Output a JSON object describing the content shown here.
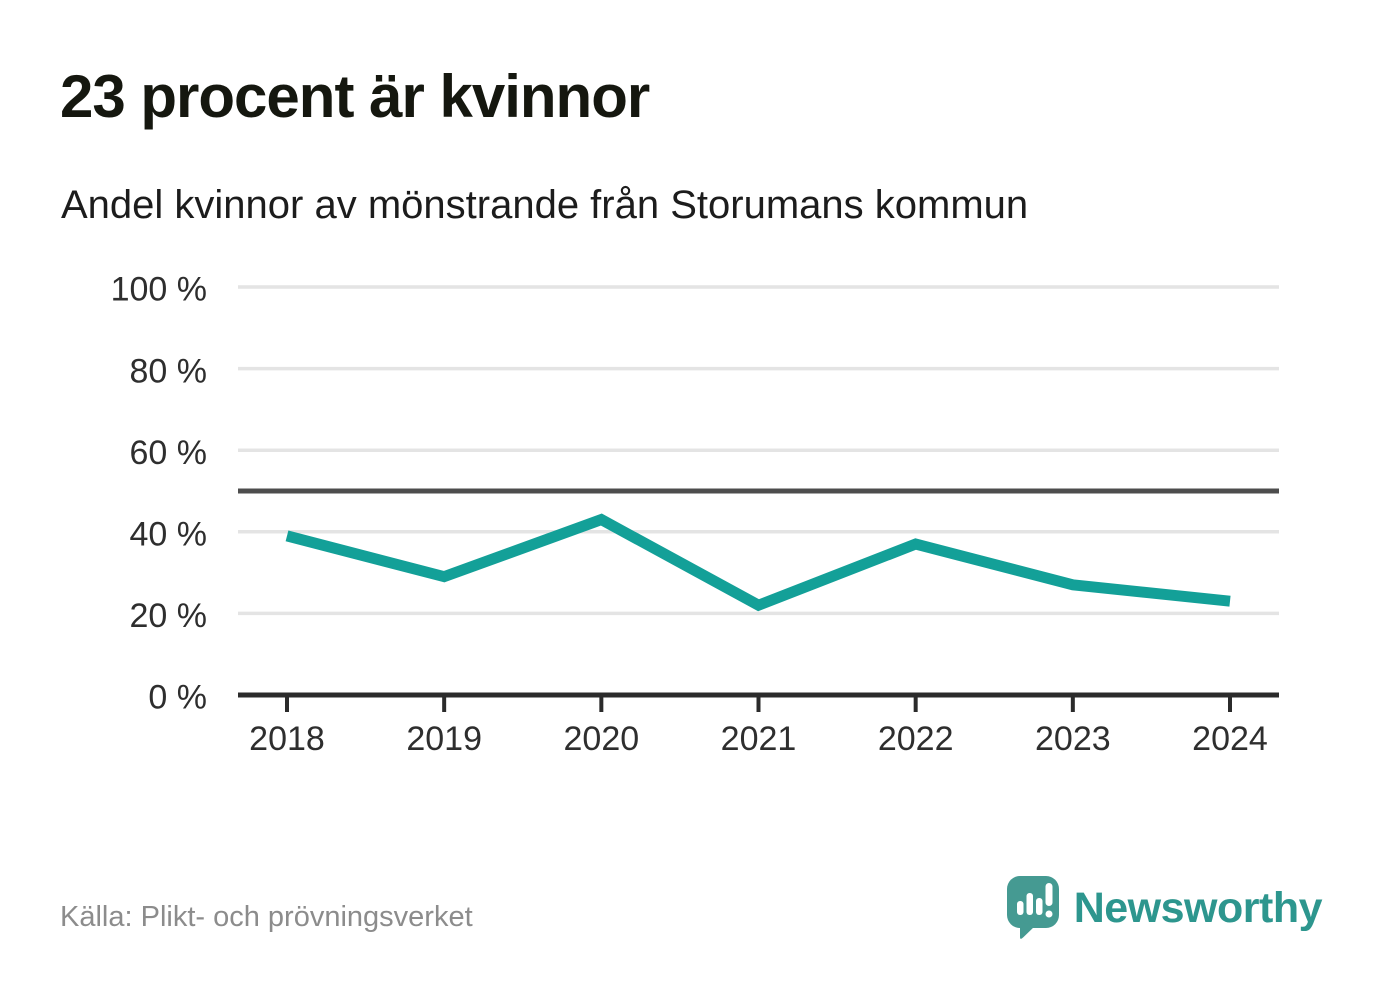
{
  "header": {
    "title": "23 procent är kvinnor",
    "subtitle": "Andel kvinnor av mönstrande från Storumans kommun"
  },
  "chart_data": {
    "type": "line",
    "title": "23 procent är kvinnor",
    "subtitle": "Andel kvinnor av mönstrande från Storumans kommun",
    "x": [
      "2018",
      "2019",
      "2020",
      "2021",
      "2022",
      "2023",
      "2024"
    ],
    "series": [
      {
        "name": "Andel kvinnor av mönstrande",
        "values": [
          39,
          29,
          43,
          22,
          37,
          27,
          23
        ],
        "color": "#13A098"
      }
    ],
    "ylim": [
      0,
      100
    ],
    "y_ticks": [
      {
        "value": 0,
        "label": "0 %"
      },
      {
        "value": 20,
        "label": "20 %"
      },
      {
        "value": 40,
        "label": "40 %"
      },
      {
        "value": 60,
        "label": "60 %"
      },
      {
        "value": 80,
        "label": "80 %"
      },
      {
        "value": 100,
        "label": "100 %"
      }
    ],
    "reference_line": {
      "value": 50
    },
    "grid": true,
    "legend": "none",
    "colors": {
      "grid": "#E4E4E4",
      "reference": "#4D4D4D",
      "axis": "#2B2B2B",
      "tick_text": "#2E2E2E",
      "line": "#13A098"
    }
  },
  "footer": {
    "source": "Källa: Plikt- och prövningsverket",
    "brand": "Newsworthy",
    "brand_color": "#2D968E",
    "logo_icon": "newsworthy-speech-bubble-bar-chart-icon"
  }
}
